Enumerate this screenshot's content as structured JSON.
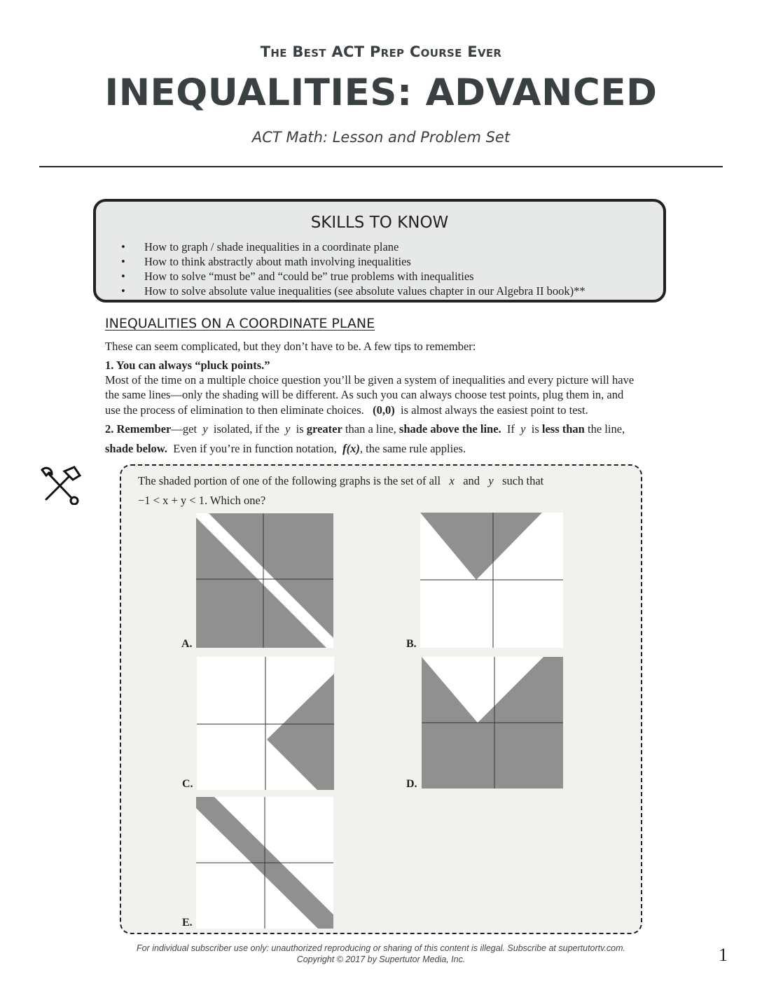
{
  "header": {
    "kicker": "The Best ACT Prep Course Ever",
    "title": "INEQUALITIES: ADVANCED",
    "subtitle_a": "ACT Math",
    "subtitle_b": ": Lesson and Problem Set"
  },
  "skills": {
    "heading": "SKILLS TO KNOW",
    "items": [
      "How to graph / shade inequalities in a coordinate plane",
      "How to think abstractly about math involving inequalities",
      "How to solve “must be” and “could be” true problems with inequalities",
      "How to solve absolute value inequalities (see absolute values chapter in our Algebra II book)**"
    ]
  },
  "section": {
    "title": "INEQUALITIES ON A COORDINATE PLANE",
    "intro": "These can seem complicated, but they don’t have to be.  A few tips to remember:",
    "tip1_title": "1. You can always “pluck points.”",
    "tip1_body_a": "Most of the time on a multiple choice question you’ll be given a system of inequalities and every picture will have",
    "tip1_body_b": "the same lines—only the shading will be different.  As such you can always choose test points, plug them in, and",
    "tip1_body_c": "use the process of elimination to then eliminate choices.",
    "tip1_point": "(0,0)",
    "tip1_body_d": "is almost always the easiest point to test.",
    "tip2_num": "2.  Remember",
    "tip2_a": "—get",
    "tip2_y": "y",
    "tip2_b": "isolated, if the",
    "tip2_c": "is",
    "tip2_greater": "greater",
    "tip2_d": "than a line,",
    "tip2_above": "shade above the line.",
    "tip2_e": "If",
    "tip2_f": "is",
    "tip2_less": "less than",
    "tip2_g": "the line,",
    "tip2_below": "shade below.",
    "tip2_h": "Even if you’re in function notation,",
    "tip2_fx": "f(x)",
    "tip2_i": ", the same rule applies."
  },
  "question": {
    "line1_a": "The shaded portion of one of the following graphs is the set of all",
    "x": "x",
    "and": "and",
    "y": "y",
    "line1_b": "such that",
    "inequality": "−1 < x + y < 1",
    "line2_b": ". Which one?",
    "choices": [
      "A.",
      "B.",
      "C.",
      "D.",
      "E."
    ]
  },
  "footer": {
    "line1": "For individual subscriber use only: unauthorized reproducing or sharing of this content is illegal. Subscribe at supertutortv.com.",
    "line2": "Copyright © 2017 by Supertutor Media, Inc.",
    "page": "1"
  },
  "colors": {
    "shade": "#909090",
    "box": "#e7e9e9",
    "qbox": "#f1f1ee"
  }
}
